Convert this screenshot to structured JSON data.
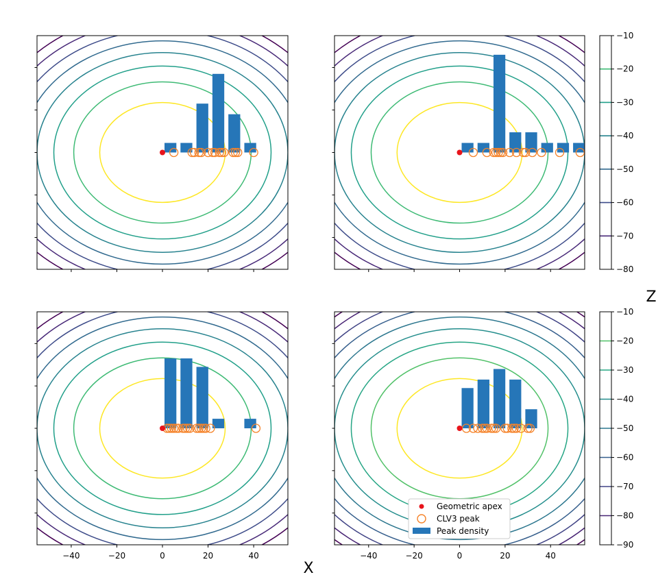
{
  "figure": {
    "x_axis_label": "X",
    "z_axis_label": "Z"
  },
  "legend": {
    "items": [
      {
        "label": "Geometric apex",
        "marker": "dot",
        "color": "#e8141b"
      },
      {
        "label": "CLV3 peak",
        "marker": "circle",
        "color": "#f5832a"
      },
      {
        "label": "Peak density",
        "marker": "bar",
        "color": "#2676b8"
      }
    ]
  },
  "colors": {
    "bar": "#2676b8",
    "apex": "#e8141b",
    "peak": "#f5832a",
    "frame": "#000000"
  },
  "chart_data": [
    {
      "type": "contour+bar+scatter",
      "panel": "top-left",
      "xlim": [
        -55,
        55
      ],
      "ylim": [
        -55,
        55
      ],
      "contour_levels": [
        -10,
        -20,
        -30,
        -40,
        -50,
        -60,
        -70,
        -80
      ],
      "contour_center": [
        0,
        0
      ],
      "apex": [
        0,
        0
      ],
      "clv3_peaks_x": [
        5,
        13,
        14,
        16,
        17,
        20,
        22,
        23,
        25,
        26,
        27,
        31,
        32,
        33,
        40
      ],
      "bars": {
        "centers": [
          3.5,
          10.5,
          17.5,
          24.5,
          31.5,
          38.5
        ],
        "heights": [
          4.5,
          4.5,
          23,
          37,
          18,
          4.5
        ],
        "width": 5.2
      }
    },
    {
      "type": "contour+bar+scatter",
      "panel": "top-right",
      "xlim": [
        -55,
        55
      ],
      "ylim": [
        -55,
        55
      ],
      "contour_levels": [
        -10,
        -20,
        -30,
        -40,
        -50,
        -60,
        -70,
        -80
      ],
      "contour_center": [
        0,
        0
      ],
      "apex": [
        0,
        0
      ],
      "clv3_peaks_x": [
        6,
        12,
        15,
        16,
        17,
        18,
        19,
        22,
        25,
        28,
        29,
        32,
        36,
        44,
        53
      ],
      "bars": {
        "centers": [
          3.5,
          10.5,
          17.5,
          24.5,
          31.5,
          38.5,
          45.5,
          52.5
        ],
        "heights": [
          4.5,
          4.5,
          46,
          9.5,
          9.5,
          4.5,
          4.5,
          4.5
        ],
        "width": 5.2
      },
      "colorbar": {
        "ticks": [
          -10,
          -20,
          -30,
          -40,
          -50,
          -60,
          -70,
          -80
        ],
        "range": [
          -80,
          -10
        ]
      }
    },
    {
      "type": "contour+bar+scatter",
      "panel": "bottom-left",
      "xlim": [
        -55,
        55
      ],
      "ylim": [
        -55,
        55
      ],
      "contour_levels": [
        -10,
        -20,
        -30,
        -40,
        -50,
        -60,
        -70,
        -80
      ],
      "contour_center": [
        0,
        0
      ],
      "apex": [
        0,
        0
      ],
      "clv3_peaks_x": [
        2,
        3,
        4,
        5,
        6,
        7,
        9,
        10,
        11,
        12,
        15,
        16,
        17,
        18,
        19,
        21,
        41
      ],
      "bars": {
        "centers": [
          3.5,
          10.5,
          17.5,
          24.5,
          31.5,
          38.5
        ],
        "heights": [
          33,
          33,
          29,
          4.5,
          0,
          4.5
        ],
        "width": 5.2
      },
      "xticks": [
        -40,
        -20,
        0,
        20,
        40
      ]
    },
    {
      "type": "contour+bar+scatter",
      "panel": "bottom-right",
      "xlim": [
        -55,
        55
      ],
      "ylim": [
        -55,
        55
      ],
      "contour_levels": [
        -10,
        -20,
        -30,
        -40,
        -50,
        -60,
        -70,
        -80,
        -90
      ],
      "contour_center": [
        0,
        0
      ],
      "apex": [
        0,
        0
      ],
      "clv3_peaks_x": [
        3,
        6,
        8,
        10,
        11,
        12,
        14,
        15,
        16,
        20,
        21,
        23,
        24,
        25,
        27,
        30,
        31
      ],
      "bars": {
        "centers": [
          3.5,
          10.5,
          17.5,
          24.5,
          31.5
        ],
        "heights": [
          19,
          23,
          28,
          23,
          9
        ],
        "width": 5.2
      },
      "xticks": [
        -40,
        -20,
        0,
        20,
        40
      ],
      "colorbar": {
        "ticks": [
          -10,
          -20,
          -30,
          -40,
          -50,
          -60,
          -70,
          -80,
          -90
        ],
        "range": [
          -90,
          -10
        ]
      }
    }
  ]
}
